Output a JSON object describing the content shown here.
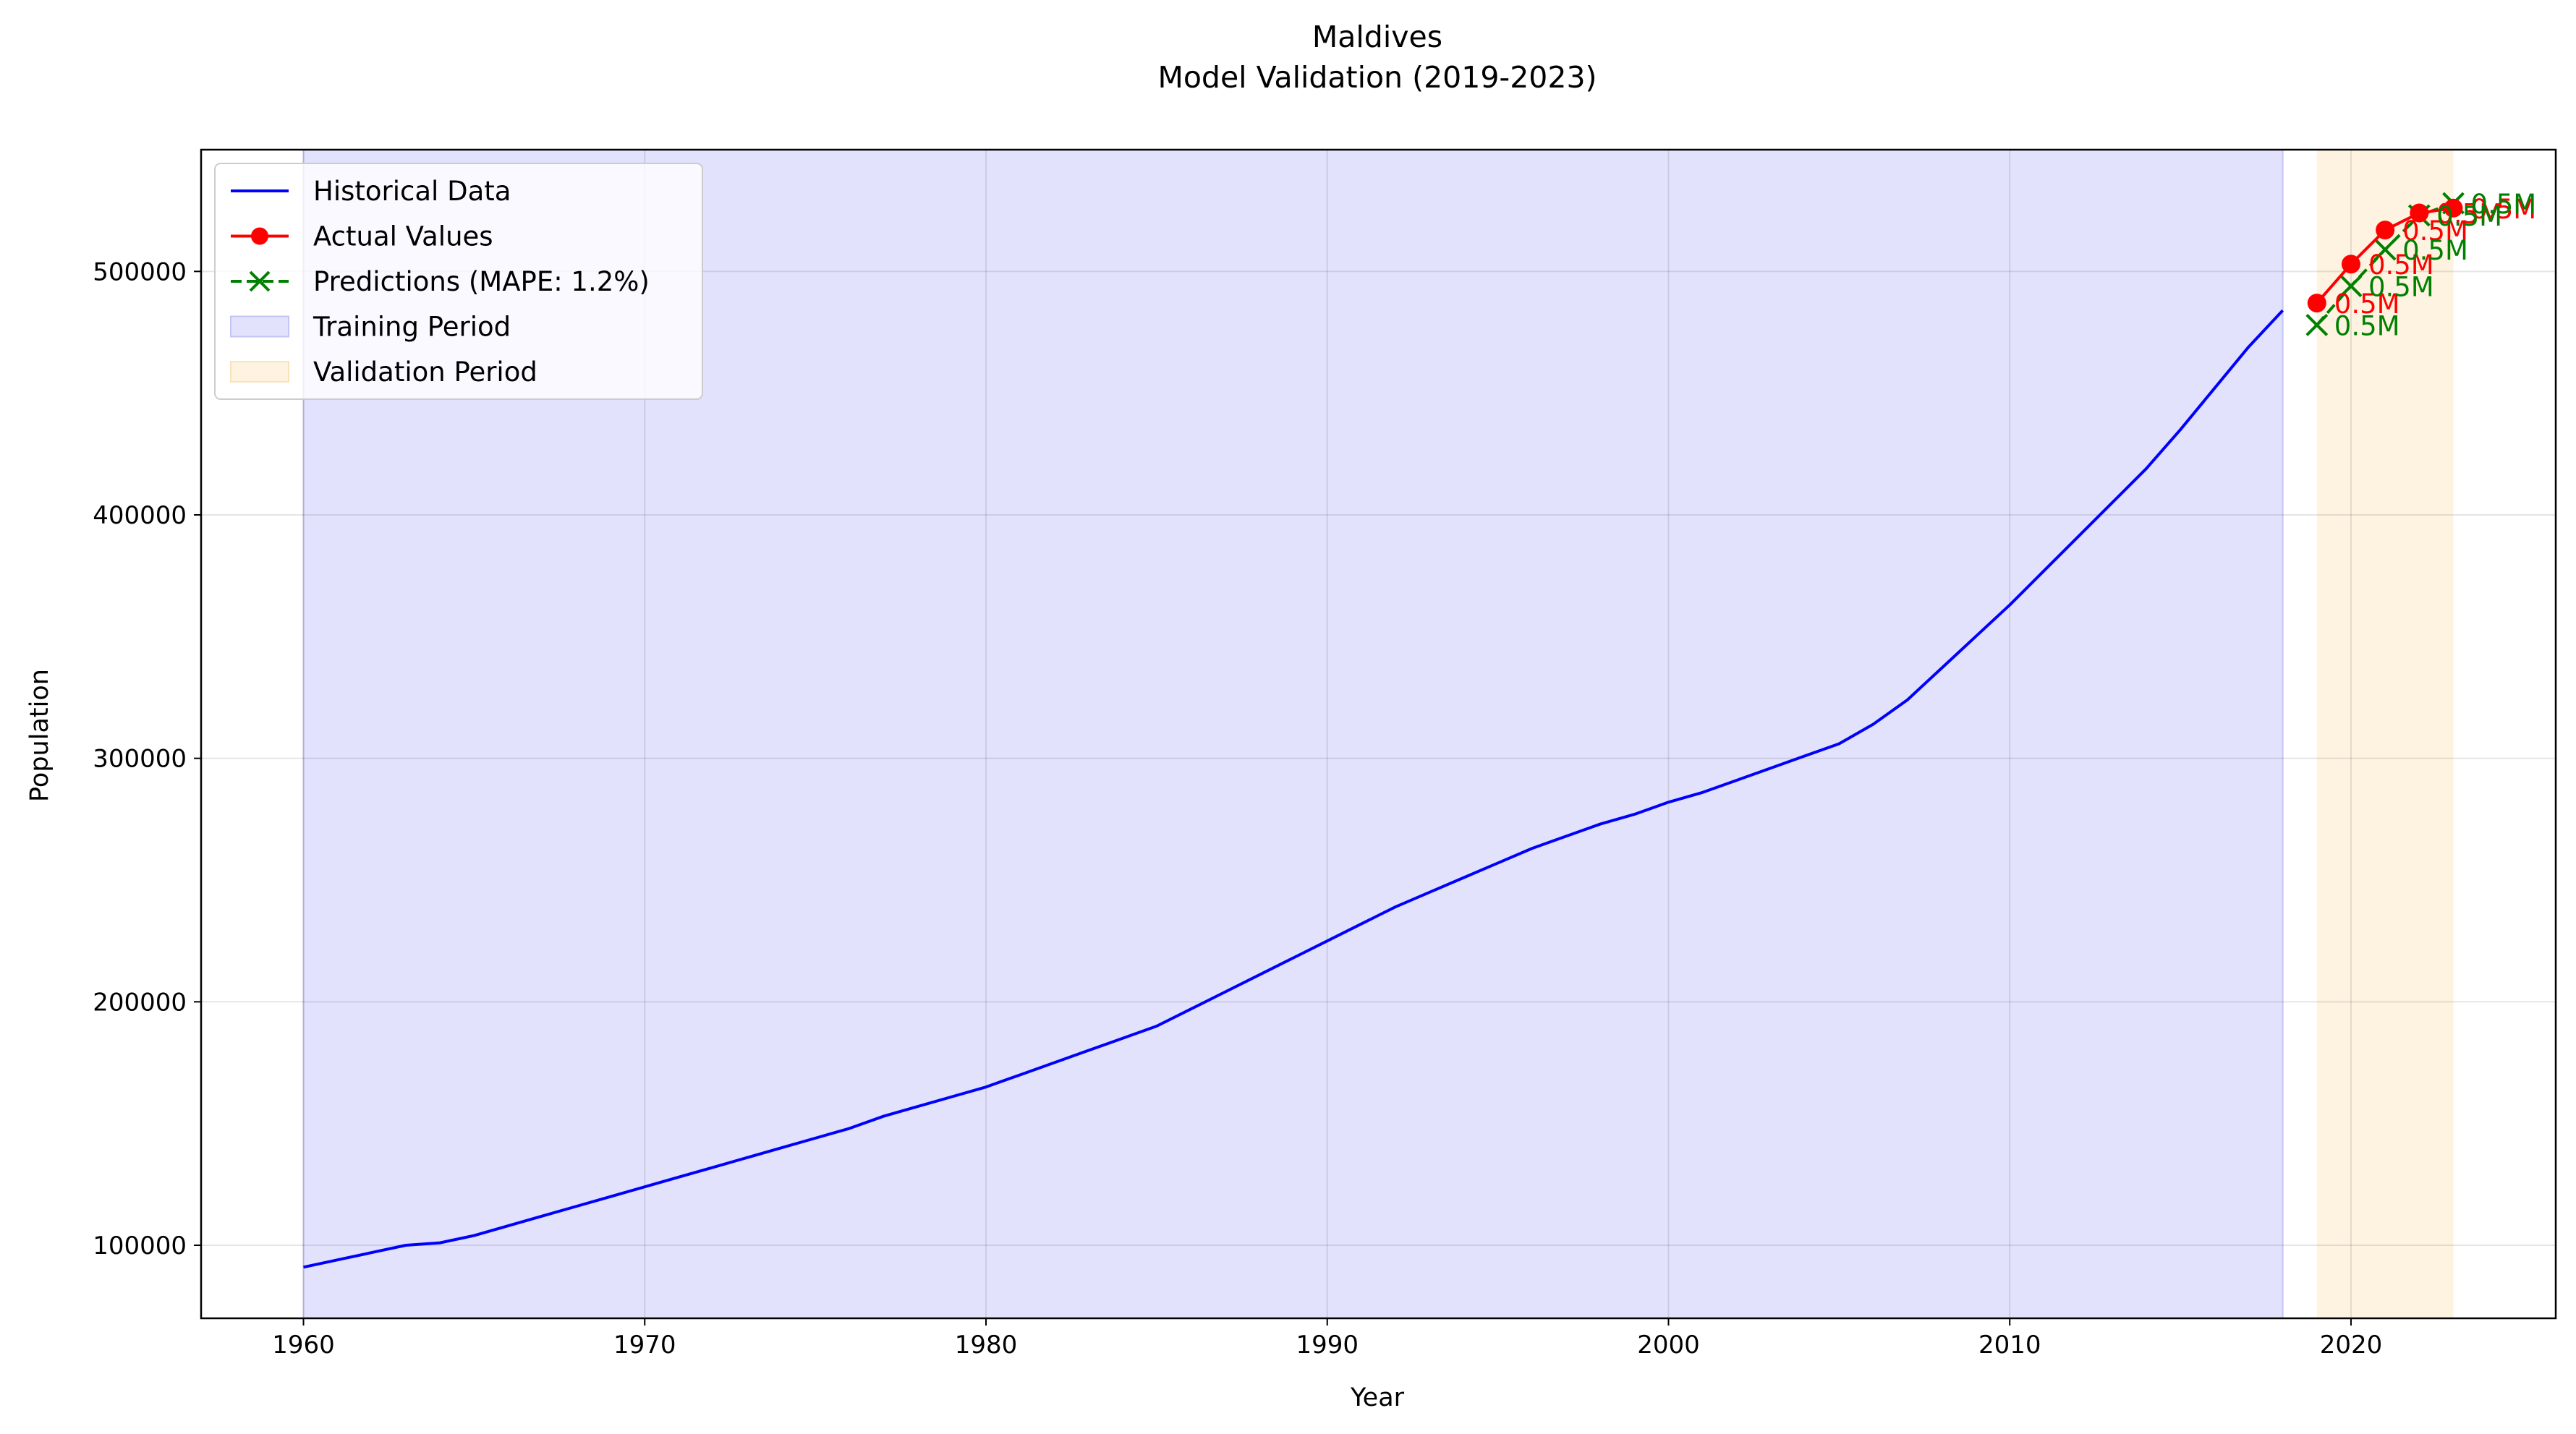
{
  "chart_data": {
    "type": "line",
    "title": "Maldives",
    "subtitle": "Model Validation (2019-2023)",
    "xlabel": "Year",
    "ylabel": "Population",
    "xlim": [
      1957,
      2026
    ],
    "ylim": [
      70000,
      550000
    ],
    "xticks": [
      1960,
      1970,
      1980,
      1990,
      2000,
      2010,
      2020
    ],
    "yticks": [
      100000,
      200000,
      300000,
      400000,
      500000
    ],
    "grid": true,
    "legend_position": "top-left",
    "training_period": [
      1960,
      2018
    ],
    "validation_period": [
      2019,
      2023
    ],
    "series": [
      {
        "name": "Historical Data",
        "color": "#0000ff",
        "style": "solid",
        "x": [
          1960,
          1961,
          1962,
          1963,
          1964,
          1965,
          1966,
          1967,
          1968,
          1969,
          1970,
          1971,
          1972,
          1973,
          1974,
          1975,
          1976,
          1977,
          1978,
          1979,
          1980,
          1981,
          1982,
          1983,
          1984,
          1985,
          1986,
          1987,
          1988,
          1989,
          1990,
          1991,
          1992,
          1993,
          1994,
          1995,
          1996,
          1997,
          1998,
          1999,
          2000,
          2001,
          2002,
          2003,
          2004,
          2005,
          2006,
          2007,
          2008,
          2009,
          2010,
          2011,
          2012,
          2013,
          2014,
          2015,
          2016,
          2017,
          2018
        ],
        "y": [
          91000,
          94000,
          97000,
          100000,
          101000,
          104000,
          108000,
          112000,
          116000,
          120000,
          124000,
          128000,
          132000,
          136000,
          140000,
          144000,
          148000,
          153000,
          157000,
          161000,
          165000,
          170000,
          175000,
          180000,
          185000,
          190000,
          197000,
          204000,
          211000,
          218000,
          225000,
          232000,
          239000,
          245000,
          251000,
          257000,
          263000,
          268000,
          273000,
          277000,
          282000,
          286000,
          291000,
          296000,
          301000,
          306000,
          314000,
          324000,
          337000,
          350000,
          363000,
          377000,
          391000,
          405000,
          419000,
          435000,
          452000,
          469000,
          484000
        ]
      },
      {
        "name": "Actual Values",
        "color": "#ff0000",
        "style": "solid-marker-circle",
        "x": [
          2019,
          2020,
          2021,
          2022,
          2023
        ],
        "y": [
          487000,
          503000,
          517000,
          524000,
          526000
        ]
      },
      {
        "name": "Predictions (MAPE: 1.2%)",
        "color": "#008000",
        "style": "dashed-marker-x",
        "x": [
          2019,
          2020,
          2021,
          2022,
          2023
        ],
        "y": [
          478000,
          494000,
          509000,
          523000,
          528000
        ]
      }
    ],
    "annotations": {
      "actual": [
        "0.5M",
        "0.5M",
        "0.5M",
        "0.5M",
        "0.5M"
      ],
      "predicted": [
        "0.5M",
        "0.5M",
        "0.5M",
        "0.5M",
        "0.5M"
      ]
    },
    "legend": [
      {
        "label": "Historical Data",
        "kind": "line",
        "color": "#0000ff"
      },
      {
        "label": "Actual Values",
        "kind": "line-circle",
        "color": "#ff0000"
      },
      {
        "label": "Predictions (MAPE: 1.2%)",
        "kind": "dash-x",
        "color": "#008000"
      },
      {
        "label": "Training Period",
        "kind": "patch",
        "color": "#e2e2fc",
        "edge": "#c4c4f4"
      },
      {
        "label": "Validation Period",
        "kind": "patch",
        "color": "#fdf3e0",
        "edge": "#f8e2b8"
      }
    ]
  }
}
